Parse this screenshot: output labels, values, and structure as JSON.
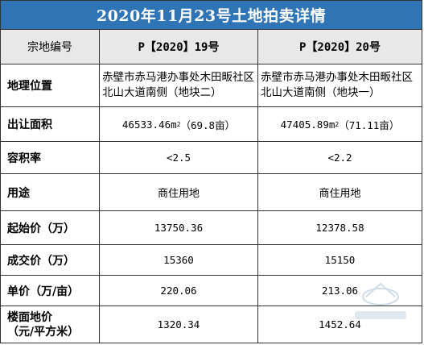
{
  "title": "2020年11月23号土地拍卖详情",
  "header": {
    "label": "宗地编号",
    "col1": "P【2020】19号",
    "col2": "P【2020】20号"
  },
  "rows": [
    {
      "label": "地理位置",
      "col1": "赤壁市赤马港办事处木田畈社区北山大道南侧（地块二）",
      "col2": "赤壁市赤马港办事处木田畈社区北山大道南侧（地块一）"
    },
    {
      "label": "出让面积",
      "col1_main": "46533.46m",
      "col1_sup": "2",
      "col1_tail": "（69.8亩）",
      "col2_main": "47405.89m",
      "col2_sup": "2",
      "col2_tail": "（71.11亩）"
    },
    {
      "label": "容积率",
      "col1": "<2.5",
      "col2": "<2.2"
    },
    {
      "label": "用途",
      "col1": "商住用地",
      "col2": "商住用地"
    },
    {
      "label": "起始价（万）",
      "col1": "13750.36",
      "col2": "12378.58"
    },
    {
      "label": "成交价（万）",
      "col1": "15360",
      "col2": "15150"
    },
    {
      "label": "单价（万/亩）",
      "col1": "220.06",
      "col2": "213.06"
    },
    {
      "label_line1": "楼面地价",
      "label_line2": "（元/平方米）",
      "col1": "1320.34",
      "col2": "1452.64"
    }
  ],
  "colors": {
    "title_bg": "#2f74b5",
    "header_bg": "#e8e8e8",
    "border": "#333333"
  }
}
